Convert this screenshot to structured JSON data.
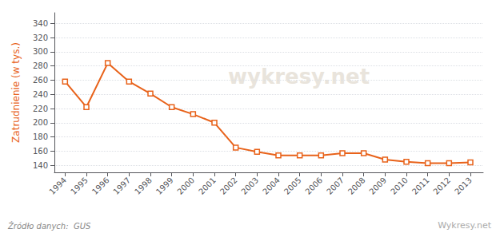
{
  "chart_data": {
    "type": "line",
    "ylabel": "Zatrudnienie (w tys.)",
    "x": [
      1994,
      1995,
      1996,
      1997,
      1998,
      1999,
      2000,
      2001,
      2002,
      2003,
      2004,
      2005,
      2006,
      2007,
      2008,
      2009,
      2010,
      2011,
      2012,
      2013
    ],
    "values": [
      258,
      222,
      284,
      258,
      241,
      222,
      212,
      200,
      165,
      159,
      154,
      154,
      154,
      157,
      157,
      148,
      145,
      143,
      143,
      144
    ],
    "color": "#E8621A",
    "marker": "square",
    "xlim": [
      1993.5,
      2013.6
    ],
    "xticks": [
      1994,
      1995,
      1996,
      1997,
      1998,
      1999,
      2000,
      2001,
      2002,
      2003,
      2004,
      2005,
      2006,
      2007,
      2008,
      2009,
      2010,
      2011,
      2012,
      2013
    ],
    "ylim": [
      130,
      355
    ],
    "yticks": [
      140,
      160,
      180,
      200,
      220,
      240,
      260,
      280,
      300,
      320,
      340
    ],
    "grid": true,
    "annotations": [
      "Źródło danych:  GUS",
      "Wykresy.net",
      "wykresy.net"
    ]
  }
}
